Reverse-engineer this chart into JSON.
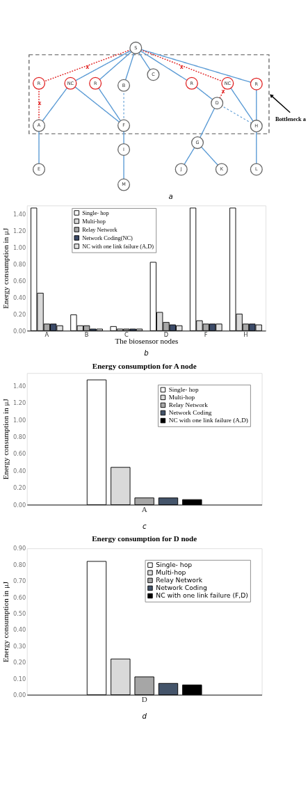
{
  "chart_data": [
    {
      "type": "other",
      "annotations": [
        "S",
        "R",
        "NC",
        "R",
        "B",
        "C",
        "R",
        "NC",
        "R",
        "D",
        "A",
        "F",
        "H",
        "G",
        "I",
        "E",
        "M",
        "J",
        "K",
        "L",
        "X",
        "X",
        "X",
        "X",
        "Bottleneck a",
        "a"
      ]
    },
    {
      "type": "bar",
      "categories": [
        "A",
        "B",
        "C",
        "D",
        "F",
        "H"
      ],
      "xlabel": "The biosensor nodes",
      "ylabel": "Energy consumption in μJ",
      "ylim": [
        0,
        1.5
      ],
      "yticks": [
        {
          "value": 0,
          "label": "0.00"
        },
        {
          "value": 0.2,
          "label": "0.20"
        },
        {
          "value": 0.4,
          "label": "0.40"
        },
        {
          "value": 0.6,
          "label": "0.60"
        },
        {
          "value": 0.8,
          "label": "0.80"
        },
        {
          "value": 1.0,
          "label": "1.00"
        },
        {
          "value": 1.2,
          "label": "1.20"
        },
        {
          "value": 1.4,
          "label": "1.40"
        }
      ],
      "legend": "top left",
      "annotations": [
        "b"
      ],
      "series": [
        {
          "name": "Single- hop",
          "color": "#ffffff",
          "values": [
            1.47,
            0.19,
            0.05,
            0.82,
            1.47,
            1.47
          ]
        },
        {
          "name": "Multi-hop",
          "color": "#d9d9d9",
          "values": [
            0.45,
            0.06,
            0.02,
            0.22,
            0.12,
            0.2
          ]
        },
        {
          "name": "Relay Network",
          "color": "#a6a6a6",
          "values": [
            0.08,
            0.06,
            0.02,
            0.1,
            0.08,
            0.08
          ]
        },
        {
          "name": "Network Coding(NC)",
          "color": "#3b4a68",
          "values": [
            0.08,
            0.02,
            0.02,
            0.07,
            0.08,
            0.08
          ]
        },
        {
          "name": "NC with one link failure (A,D)",
          "color": "#e0e0e0",
          "values": [
            0.06,
            0.02,
            0.02,
            0.06,
            0.08,
            0.07
          ]
        }
      ]
    },
    {
      "type": "bar",
      "title": "Energy consumption for A node",
      "categories": [
        "A"
      ],
      "ylabel": "Energy consumption in μJ",
      "ylim": [
        0,
        1.55
      ],
      "yticks": [
        {
          "value": 0,
          "label": "0.00"
        },
        {
          "value": 0.2,
          "label": "0.20"
        },
        {
          "value": 0.4,
          "label": "0.40"
        },
        {
          "value": 0.6,
          "label": "0.60"
        },
        {
          "value": 0.8,
          "label": "0.80"
        },
        {
          "value": 1.0,
          "label": "1.00"
        },
        {
          "value": 1.2,
          "label": "1.20"
        },
        {
          "value": 1.4,
          "label": "1.40"
        }
      ],
      "legend": "top right",
      "annotations": [
        "c"
      ],
      "series": [
        {
          "name": "Single- hop",
          "color": "#ffffff",
          "values": [
            1.47
          ]
        },
        {
          "name": "Multi-hop",
          "color": "#d9d9d9",
          "values": [
            0.44
          ]
        },
        {
          "name": "Relay Network",
          "color": "#a6a6a6",
          "values": [
            0.08
          ]
        },
        {
          "name": "Network Coding",
          "color": "#44546a",
          "values": [
            0.08
          ]
        },
        {
          "name": "NC with one link failure (A,D)",
          "color": "#000000",
          "values": [
            0.06
          ]
        }
      ]
    },
    {
      "type": "bar",
      "title": "Energy consumption for D node",
      "categories": [
        "D"
      ],
      "ylabel": "Energy consumption in μJ",
      "ylim": [
        0,
        0.9
      ],
      "yticks": [
        {
          "value": 0,
          "label": "0.00"
        },
        {
          "value": 0.1,
          "label": "0.10"
        },
        {
          "value": 0.2,
          "label": "0.20"
        },
        {
          "value": 0.3,
          "label": "0.30"
        },
        {
          "value": 0.4,
          "label": "0.40"
        },
        {
          "value": 0.5,
          "label": "0.50"
        },
        {
          "value": 0.6,
          "label": "0.60"
        },
        {
          "value": 0.7,
          "label": "0.70"
        },
        {
          "value": 0.8,
          "label": "0.80"
        },
        {
          "value": 0.9,
          "label": "0.90"
        }
      ],
      "legend": "top right",
      "annotations": [
        "d"
      ],
      "series": [
        {
          "name": "Single- hop",
          "color": "#ffffff",
          "values": [
            0.82
          ]
        },
        {
          "name": "Multi-hop",
          "color": "#d9d9d9",
          "values": [
            0.22
          ]
        },
        {
          "name": "Relay Network",
          "color": "#a6a6a6",
          "values": [
            0.11
          ]
        },
        {
          "name": "Network Coding",
          "color": "#44546a",
          "values": [
            0.07
          ]
        },
        {
          "name": "NC with one link failure (F,D)",
          "color": "#000000",
          "values": [
            0.06
          ]
        }
      ]
    }
  ]
}
